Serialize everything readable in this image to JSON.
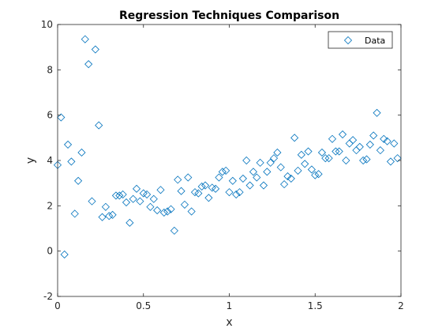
{
  "chart_data": {
    "type": "scatter",
    "title": "Regression Techniques Comparison",
    "xlabel": "x",
    "ylabel": "y",
    "xlim": [
      0,
      2
    ],
    "ylim": [
      -2,
      10
    ],
    "xticks": [
      "0",
      "0.5",
      "1",
      "1.5",
      "2"
    ],
    "yticks": [
      "-2",
      "0",
      "2",
      "4",
      "6",
      "8",
      "10"
    ],
    "grid": false,
    "legend_position": "top-right",
    "marker": "diamond",
    "color": "#0072BD",
    "series": [
      {
        "name": "Data",
        "points": [
          [
            0.0,
            3.8
          ],
          [
            0.02,
            5.9
          ],
          [
            0.04,
            -0.15
          ],
          [
            0.06,
            4.7
          ],
          [
            0.08,
            3.95
          ],
          [
            0.1,
            1.65
          ],
          [
            0.12,
            3.1
          ],
          [
            0.14,
            4.35
          ],
          [
            0.16,
            9.35
          ],
          [
            0.18,
            8.25
          ],
          [
            0.2,
            2.2
          ],
          [
            0.22,
            8.9
          ],
          [
            0.24,
            5.55
          ],
          [
            0.26,
            1.5
          ],
          [
            0.28,
            1.95
          ],
          [
            0.3,
            1.55
          ],
          [
            0.32,
            1.6
          ],
          [
            0.34,
            2.45
          ],
          [
            0.36,
            2.45
          ],
          [
            0.38,
            2.5
          ],
          [
            0.4,
            2.15
          ],
          [
            0.42,
            1.25
          ],
          [
            0.44,
            2.3
          ],
          [
            0.46,
            2.75
          ],
          [
            0.48,
            2.2
          ],
          [
            0.5,
            2.55
          ],
          [
            0.52,
            2.5
          ],
          [
            0.54,
            1.95
          ],
          [
            0.56,
            2.3
          ],
          [
            0.58,
            1.8
          ],
          [
            0.6,
            2.7
          ],
          [
            0.62,
            1.7
          ],
          [
            0.64,
            1.75
          ],
          [
            0.66,
            1.85
          ],
          [
            0.68,
            0.9
          ],
          [
            0.7,
            3.15
          ],
          [
            0.72,
            2.65
          ],
          [
            0.74,
            2.05
          ],
          [
            0.76,
            3.25
          ],
          [
            0.78,
            1.75
          ],
          [
            0.8,
            2.6
          ],
          [
            0.82,
            2.55
          ],
          [
            0.84,
            2.85
          ],
          [
            0.86,
            2.9
          ],
          [
            0.88,
            2.35
          ],
          [
            0.9,
            2.8
          ],
          [
            0.92,
            2.75
          ],
          [
            0.94,
            3.25
          ],
          [
            0.96,
            3.5
          ],
          [
            0.98,
            3.55
          ],
          [
            1.0,
            2.6
          ],
          [
            1.02,
            3.1
          ],
          [
            1.04,
            2.5
          ],
          [
            1.06,
            2.6
          ],
          [
            1.08,
            3.2
          ],
          [
            1.1,
            4.0
          ],
          [
            1.12,
            2.9
          ],
          [
            1.14,
            3.5
          ],
          [
            1.16,
            3.25
          ],
          [
            1.18,
            3.9
          ],
          [
            1.2,
            2.9
          ],
          [
            1.22,
            3.5
          ],
          [
            1.24,
            3.9
          ],
          [
            1.26,
            4.1
          ],
          [
            1.28,
            4.35
          ],
          [
            1.3,
            3.7
          ],
          [
            1.32,
            2.95
          ],
          [
            1.34,
            3.3
          ],
          [
            1.36,
            3.2
          ],
          [
            1.38,
            5.0
          ],
          [
            1.4,
            3.55
          ],
          [
            1.42,
            4.25
          ],
          [
            1.44,
            3.85
          ],
          [
            1.46,
            4.4
          ],
          [
            1.48,
            3.6
          ],
          [
            1.5,
            3.35
          ],
          [
            1.52,
            3.4
          ],
          [
            1.54,
            4.35
          ],
          [
            1.56,
            4.1
          ],
          [
            1.58,
            4.1
          ],
          [
            1.6,
            4.95
          ],
          [
            1.62,
            4.4
          ],
          [
            1.64,
            4.4
          ],
          [
            1.66,
            5.15
          ],
          [
            1.68,
            4.0
          ],
          [
            1.7,
            4.75
          ],
          [
            1.72,
            4.9
          ],
          [
            1.74,
            4.45
          ],
          [
            1.76,
            4.6
          ],
          [
            1.78,
            4.0
          ],
          [
            1.8,
            4.05
          ],
          [
            1.82,
            4.7
          ],
          [
            1.84,
            5.1
          ],
          [
            1.86,
            6.1
          ],
          [
            1.88,
            4.45
          ],
          [
            1.9,
            4.95
          ],
          [
            1.92,
            4.85
          ],
          [
            1.94,
            3.95
          ],
          [
            1.96,
            4.75
          ],
          [
            1.98,
            4.1
          ]
        ]
      }
    ]
  }
}
